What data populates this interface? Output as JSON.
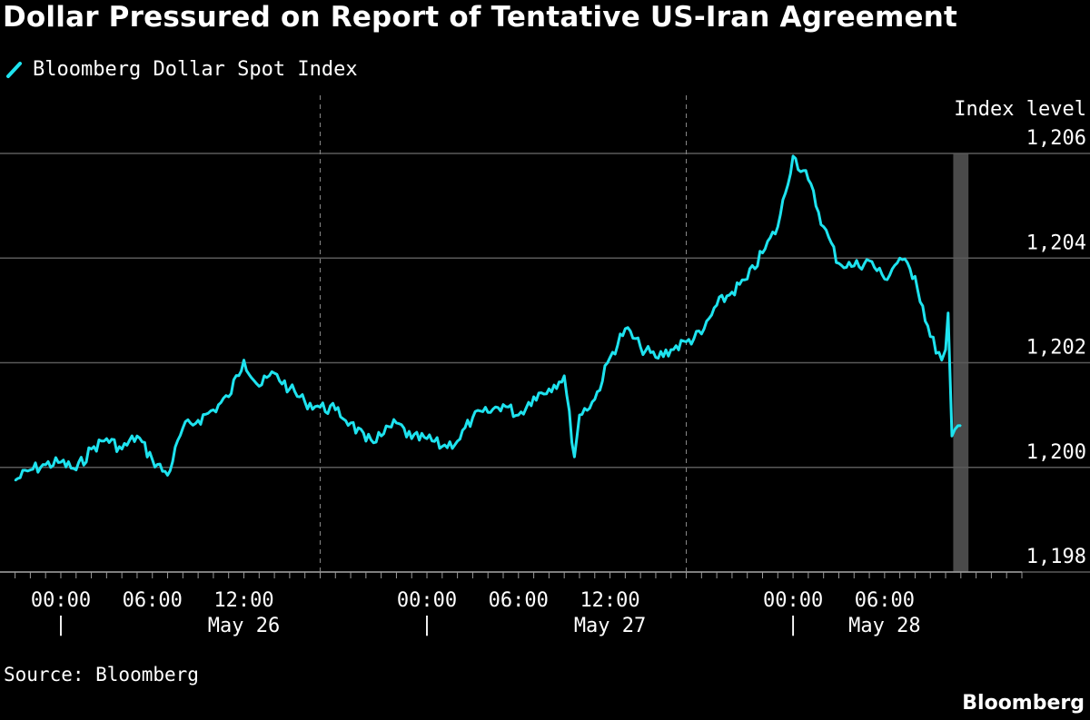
{
  "colors": {
    "background": "#000000",
    "line": "#1ee3ef",
    "grid": "#5a5a5a",
    "shade": "#4a4a4a",
    "text": "#ffffff"
  },
  "chart_data": {
    "type": "line",
    "title": "Dollar Pressured on Report of Tentative US-Iran Agreement",
    "series": [
      {
        "name": "Bloomberg Dollar Spot Index",
        "color": "#1ee3ef",
        "points": [
          [
            "2025-05-25 21:00",
            1199.75
          ],
          [
            "2025-05-25 22:00",
            1199.95
          ],
          [
            "2025-05-25 23:00",
            1200.05
          ],
          [
            "2025-05-26 00:00",
            1200.1
          ],
          [
            "2025-05-26 01:00",
            1199.95
          ],
          [
            "2025-05-26 02:00",
            1200.35
          ],
          [
            "2025-05-26 03:00",
            1200.55
          ],
          [
            "2025-05-26 04:00",
            1200.35
          ],
          [
            "2025-05-26 05:00",
            1200.6
          ],
          [
            "2025-05-26 06:00",
            1200.15
          ],
          [
            "2025-05-26 07:00",
            1199.85
          ],
          [
            "2025-05-26 08:00",
            1200.75
          ],
          [
            "2025-05-26 09:00",
            1200.9
          ],
          [
            "2025-05-26 10:00",
            1201.1
          ],
          [
            "2025-05-26 11:00",
            1201.35
          ],
          [
            "2025-05-26 12:00",
            1202.05
          ],
          [
            "2025-05-26 13:00",
            1201.55
          ],
          [
            "2025-05-26 14:00",
            1201.8
          ],
          [
            "2025-05-26 15:00",
            1201.5
          ],
          [
            "2025-05-26 16:00",
            1201.25
          ],
          [
            "2025-05-26 17:00",
            1201.15
          ],
          [
            "2025-05-26 18:00",
            1201.1
          ],
          [
            "2025-05-26 19:00",
            1200.85
          ],
          [
            "2025-05-26 20:00",
            1200.5
          ],
          [
            "2025-05-26 21:00",
            1200.6
          ],
          [
            "2025-05-26 22:00",
            1200.85
          ],
          [
            "2025-05-26 23:00",
            1200.55
          ],
          [
            "2025-05-27 00:00",
            1200.55
          ],
          [
            "2025-05-27 01:00",
            1200.4
          ],
          [
            "2025-05-27 02:00",
            1200.5
          ],
          [
            "2025-05-27 03:00",
            1200.95
          ],
          [
            "2025-05-27 04:00",
            1201.05
          ],
          [
            "2025-05-27 05:00",
            1201.2
          ],
          [
            "2025-05-27 06:00",
            1201.0
          ],
          [
            "2025-05-27 07:00",
            1201.35
          ],
          [
            "2025-05-27 08:00",
            1201.5
          ],
          [
            "2025-05-27 09:00",
            1201.75
          ],
          [
            "2025-05-27 09:40",
            1200.2
          ],
          [
            "2025-05-27 10:00",
            1201.0
          ],
          [
            "2025-05-27 11:00",
            1201.3
          ],
          [
            "2025-05-27 12:00",
            1202.1
          ],
          [
            "2025-05-27 13:00",
            1202.65
          ],
          [
            "2025-05-27 14:00",
            1202.3
          ],
          [
            "2025-05-27 15:00",
            1202.1
          ],
          [
            "2025-05-27 16:00",
            1202.25
          ],
          [
            "2025-05-27 17:00",
            1202.4
          ],
          [
            "2025-05-27 18:00",
            1202.55
          ],
          [
            "2025-05-27 19:00",
            1203.1
          ],
          [
            "2025-05-27 20:00",
            1203.35
          ],
          [
            "2025-05-27 21:00",
            1203.6
          ],
          [
            "2025-05-27 22:00",
            1204.1
          ],
          [
            "2025-05-27 23:00",
            1204.6
          ],
          [
            "2025-05-28 00:00",
            1205.95
          ],
          [
            "2025-05-28 01:00",
            1205.5
          ],
          [
            "2025-05-28 02:00",
            1204.6
          ],
          [
            "2025-05-28 03:00",
            1203.9
          ],
          [
            "2025-05-28 04:00",
            1203.85
          ],
          [
            "2025-05-28 05:00",
            1203.95
          ],
          [
            "2025-05-28 06:00",
            1203.6
          ],
          [
            "2025-05-28 07:00",
            1204.0
          ],
          [
            "2025-05-28 08:00",
            1203.65
          ],
          [
            "2025-05-28 09:00",
            1202.5
          ],
          [
            "2025-05-28 09:45",
            1202.05
          ],
          [
            "2025-05-28 10:00",
            1202.25
          ],
          [
            "2025-05-28 10:10",
            1202.95
          ],
          [
            "2025-05-28 10:25",
            1200.6
          ],
          [
            "2025-05-28 11:00",
            1200.8
          ]
        ]
      }
    ],
    "x_axis": {
      "range": [
        "2025-05-25 20:15",
        "2025-05-28 15:00"
      ],
      "labeled_ticks": [
        {
          "time": "2025-05-26 00:00",
          "label": "00:00"
        },
        {
          "time": "2025-05-26 06:00",
          "label": "06:00"
        },
        {
          "time": "2025-05-26 12:00",
          "label": "12:00"
        },
        {
          "time": "2025-05-27 00:00",
          "label": "00:00"
        },
        {
          "time": "2025-05-27 06:00",
          "label": "06:00"
        },
        {
          "time": "2025-05-27 12:00",
          "label": "12:00"
        },
        {
          "time": "2025-05-28 00:00",
          "label": "00:00"
        },
        {
          "time": "2025-05-28 06:00",
          "label": "06:00"
        }
      ],
      "day_labels": [
        {
          "time": "2025-05-26 12:00",
          "label": "May 26"
        },
        {
          "time": "2025-05-27 12:00",
          "label": "May 27"
        },
        {
          "time": "2025-05-28 06:00",
          "label": "May 28"
        }
      ],
      "day_markers": [
        "2025-05-26 00:00",
        "2025-05-27 00:00",
        "2025-05-28 00:00"
      ],
      "day_marker_label": "|",
      "dashed_gridlines": [
        "2025-05-26 17:00",
        "2025-05-27 17:00"
      ],
      "minor_tick_interval_hours": 1
    },
    "y_axis": {
      "title": "Index level",
      "ylim": [
        1198,
        1206
      ],
      "ticks": [
        1206,
        1204,
        1202,
        1200,
        1198
      ],
      "tick_labels": [
        "1,206",
        "1,204",
        "1,202",
        "1,200",
        "1,198"
      ],
      "grid": true,
      "position": "right"
    },
    "shaded_band": {
      "start": "2025-05-28 10:30",
      "end": "2025-05-28 11:30"
    },
    "legend_position": "top-left"
  },
  "footer": {
    "source": "Source: Bloomberg",
    "brand": "Bloomberg"
  }
}
